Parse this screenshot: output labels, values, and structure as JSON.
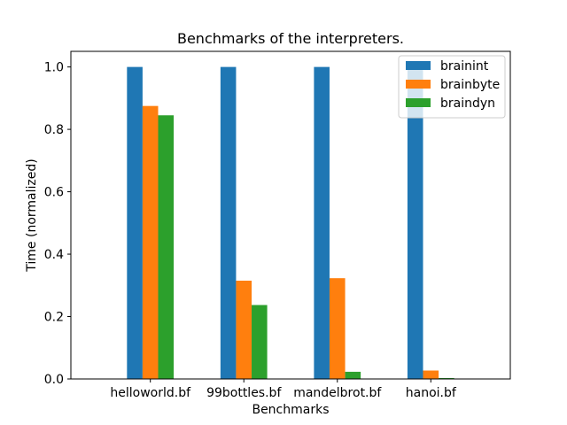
{
  "chart_data": {
    "type": "bar",
    "title": "Benchmarks of the interpreters.",
    "xlabel": "Benchmarks",
    "ylabel": "Time (normalized)",
    "categories": [
      "helloworld.bf",
      "99bottles.bf",
      "mandelbrot.bf",
      "hanoi.bf"
    ],
    "series": [
      {
        "name": "brainint",
        "color": "#1f77b4",
        "values": [
          1.0,
          1.0,
          1.0,
          1.0
        ]
      },
      {
        "name": "brainbyte",
        "color": "#ff7f0e",
        "values": [
          0.875,
          0.315,
          0.323,
          0.027
        ]
      },
      {
        "name": "braindyn",
        "color": "#2ca02c",
        "values": [
          0.845,
          0.237,
          0.023,
          0.003
        ]
      }
    ],
    "ylim": [
      0,
      1.05
    ],
    "yticks": [
      0.0,
      0.2,
      0.4,
      0.6,
      0.8,
      1.0
    ],
    "ytick_labels": [
      "0.0",
      "0.2",
      "0.4",
      "0.6",
      "0.8",
      "1.0"
    ],
    "grid": false,
    "legend_position": "top-right"
  }
}
